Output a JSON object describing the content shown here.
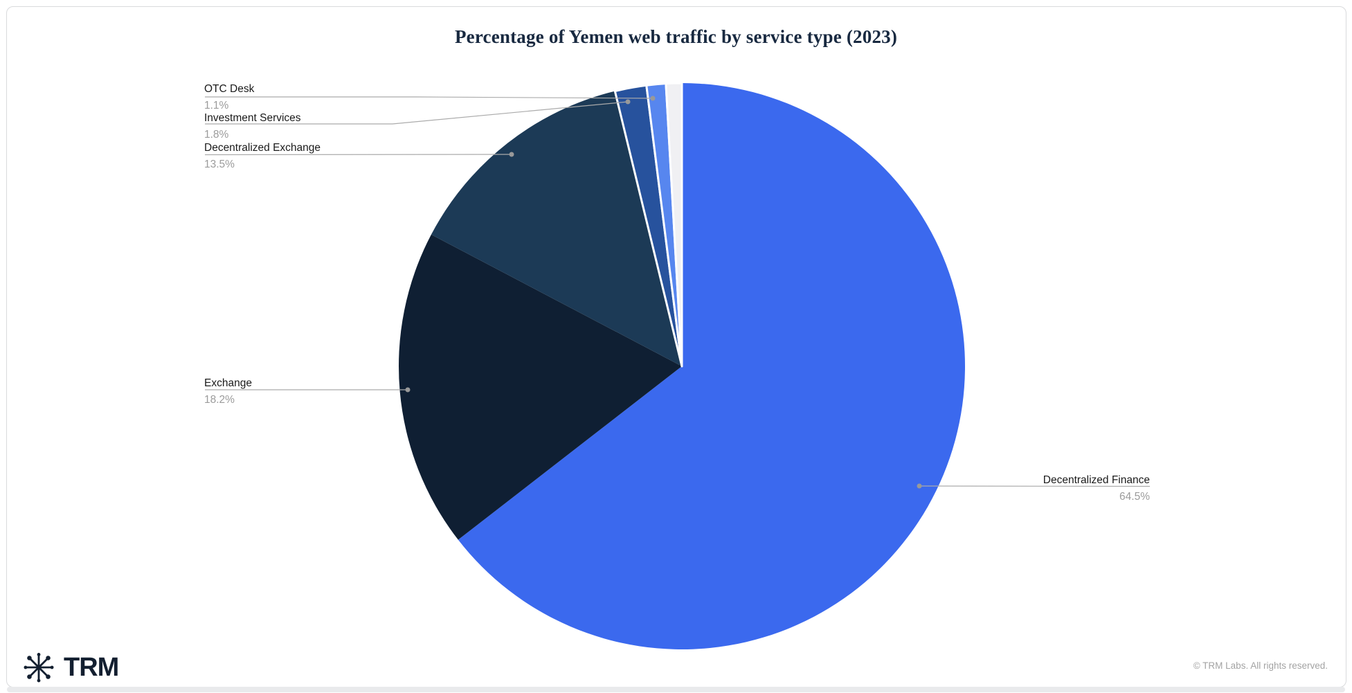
{
  "title": "Percentage of Yemen web traffic by service type (2023)",
  "chart_data": {
    "type": "pie",
    "title": "Percentage of Yemen web traffic by service type (2023)",
    "unit": "%",
    "direction": "clockwise",
    "start_angle_deg": 0,
    "series": [
      {
        "label": "Decentralized Finance",
        "value": 64.5,
        "display": "64.5%",
        "color": "#3B69EE"
      },
      {
        "label": "Exchange",
        "value": 18.2,
        "display": "18.2%",
        "color": "#0F1F33"
      },
      {
        "label": "Decentralized Exchange",
        "value": 13.5,
        "display": "13.5%",
        "color": "#1C3A56"
      },
      {
        "label": "Investment Services",
        "value": 1.8,
        "display": "1.8%",
        "color": "#27529D"
      },
      {
        "label": "OTC Desk",
        "value": 1.1,
        "display": "1.1%",
        "color": "#5786EF"
      },
      {
        "label": "",
        "value": 0.9,
        "display": "",
        "color": "#F0F0F3"
      }
    ],
    "legend_position": "none",
    "label_style": {
      "name_color": "#1a1a1a",
      "value_color": "#9b9b9b",
      "line_color": "#ababab"
    }
  },
  "footer": {
    "logo_text": "TRM",
    "copyright": "© TRM Labs. All rights reserved."
  }
}
